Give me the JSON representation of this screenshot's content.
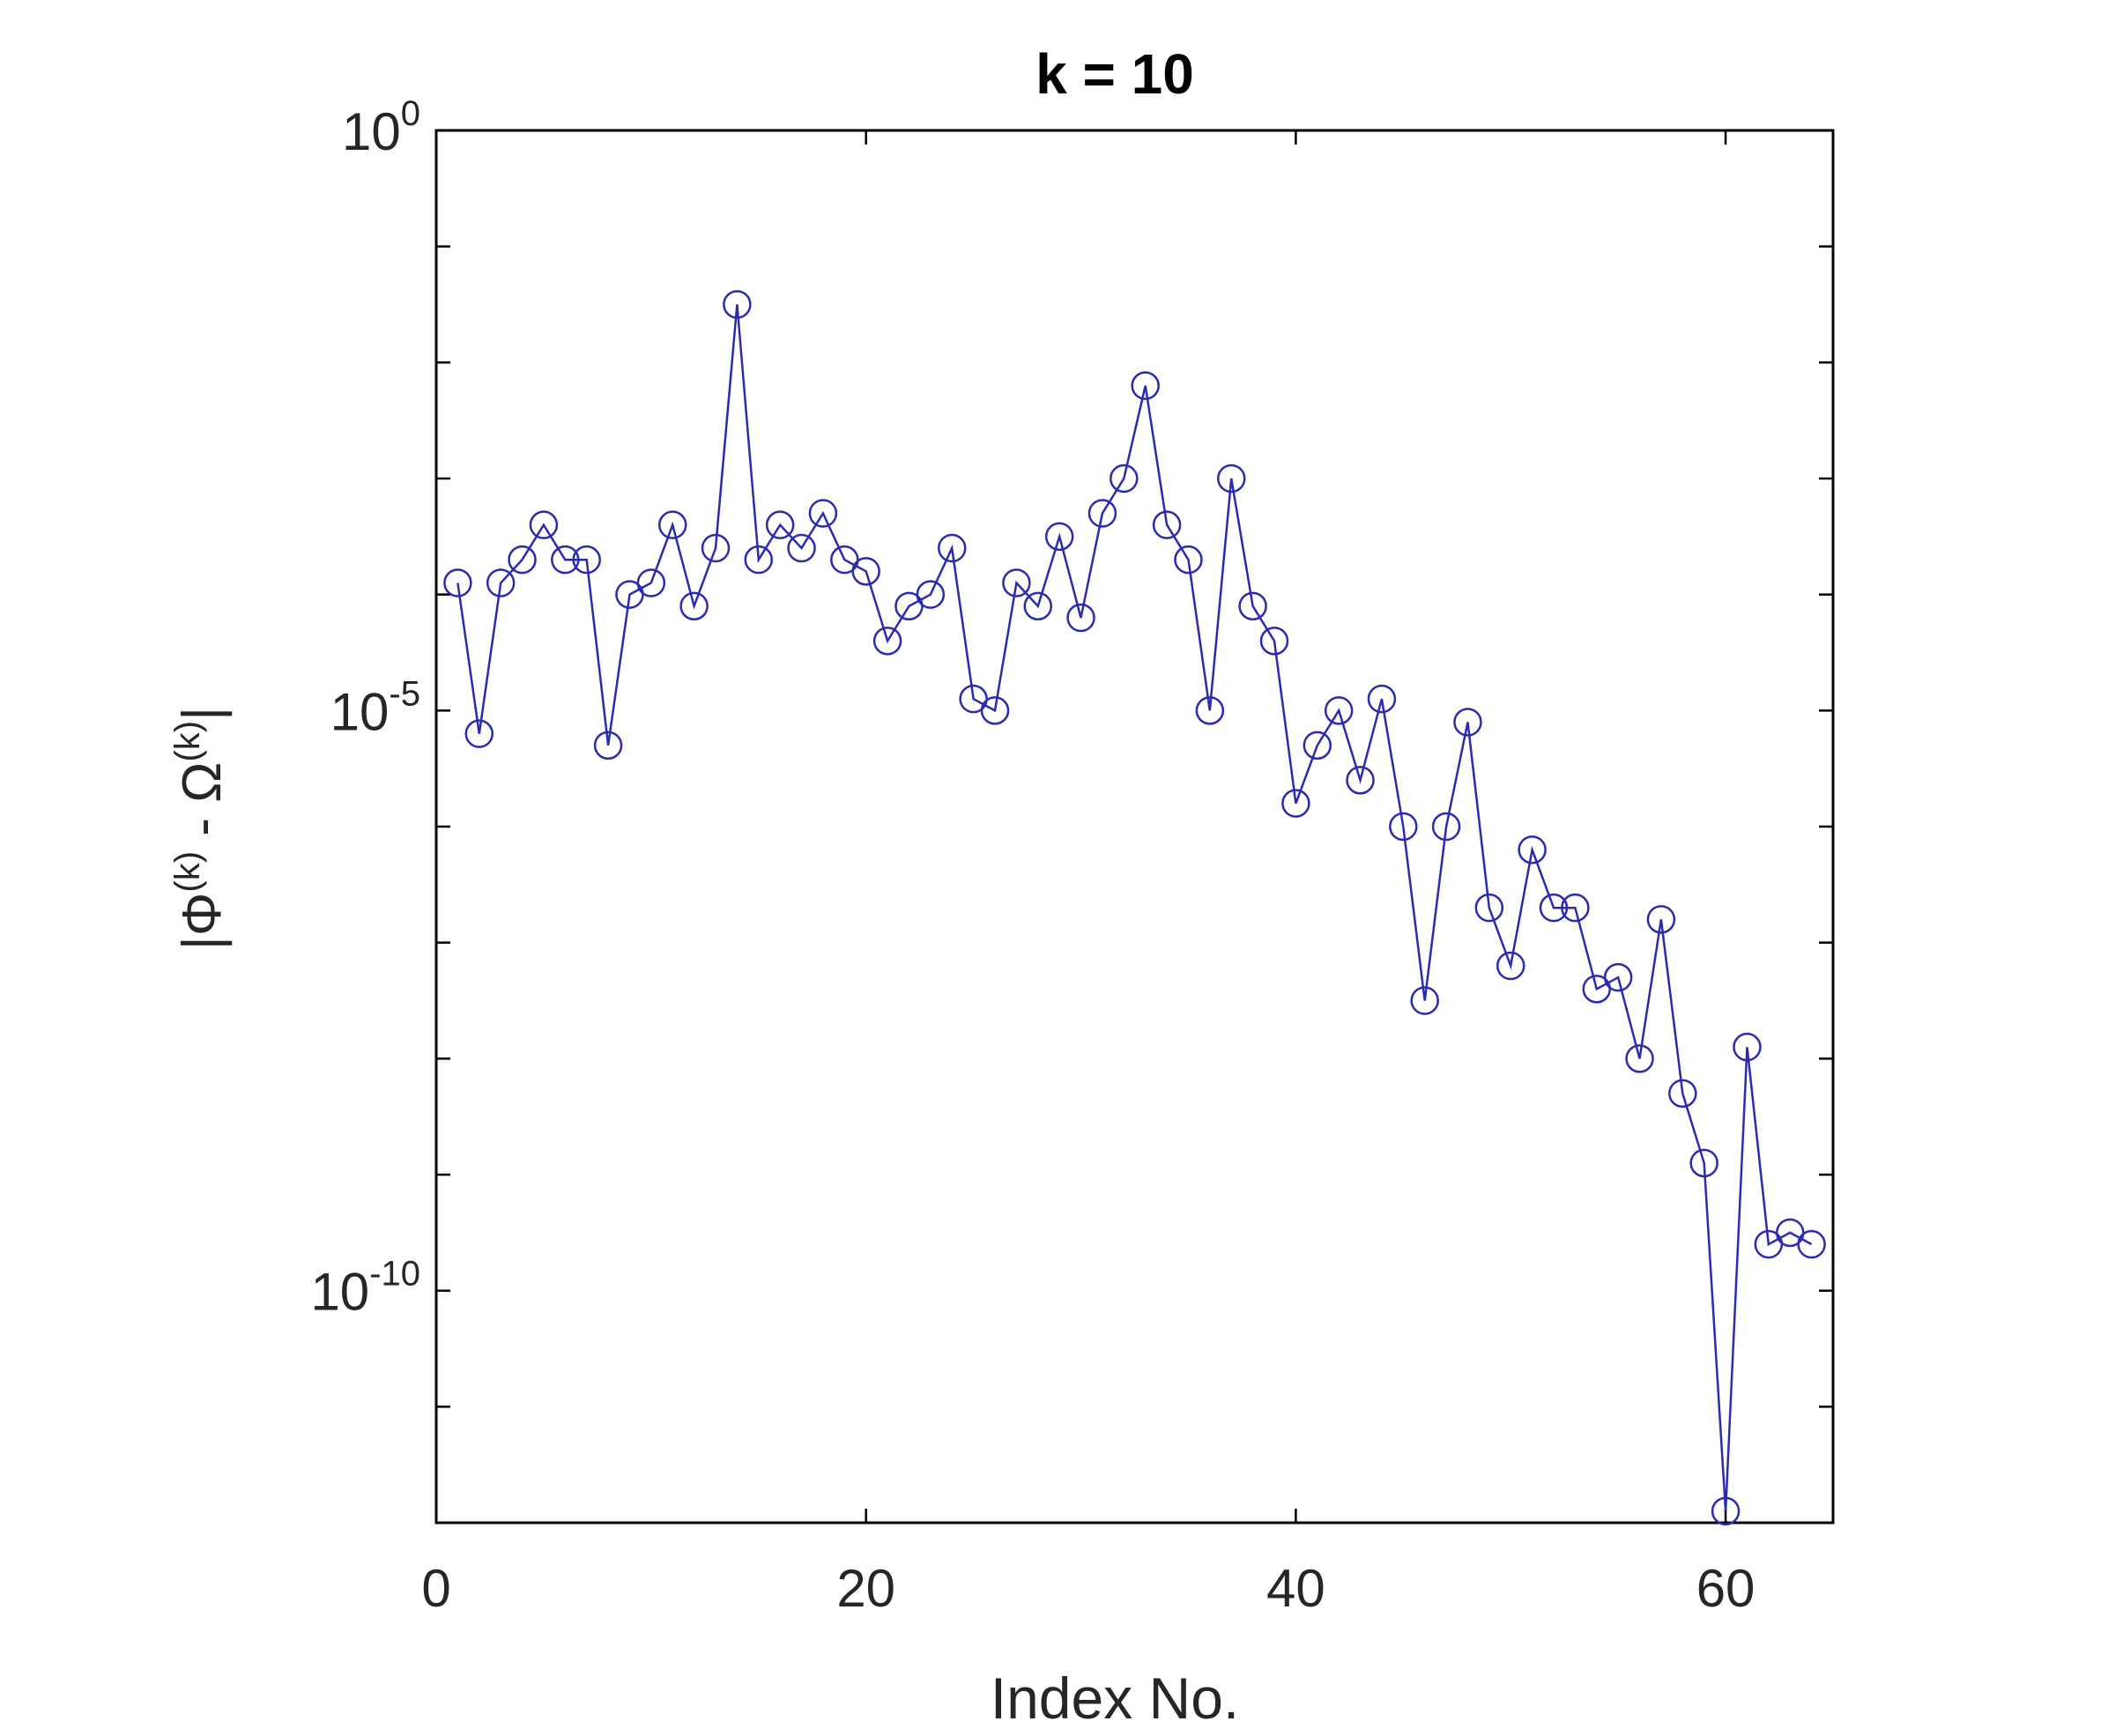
{
  "chart_data": {
    "type": "line",
    "title": "k = 10",
    "xlabel": "Index No.",
    "ylabel": {
      "prefix": "|Φ",
      "sup1": "(k)",
      "middle": " - Ω",
      "sup2": "(k)",
      "suffix": "|"
    },
    "xlim": [
      0,
      65
    ],
    "ylim_log10": [
      -12,
      0
    ],
    "yscale": "log",
    "grid": false,
    "marker": "circle",
    "color": "#2b2bb0",
    "xticks": [
      0,
      20,
      40,
      60
    ],
    "xtick_labels": [
      "0",
      "20",
      "40",
      "60"
    ],
    "yticks_log10": [
      0,
      -5,
      -10
    ],
    "ytick_labels": [
      {
        "base": "10",
        "exp": "0"
      },
      {
        "base": "10",
        "exp": "-5"
      },
      {
        "base": "10",
        "exp": "-10"
      }
    ],
    "series": [
      {
        "x": [
          1,
          2,
          3,
          4,
          5,
          6,
          7,
          8,
          9,
          10,
          11,
          12,
          13,
          14,
          15,
          16,
          17,
          18,
          19,
          20,
          21,
          22,
          23,
          24,
          25,
          26,
          27,
          28,
          29,
          30,
          31,
          32,
          33,
          34,
          35,
          36,
          37,
          38,
          39,
          40,
          41,
          42,
          43,
          44,
          45,
          46,
          47,
          48,
          49,
          50,
          51,
          52,
          53,
          54,
          55,
          56,
          57,
          58,
          59,
          60,
          61,
          62,
          63,
          64
        ],
        "log10_y": [
          -3.9,
          -5.2,
          -3.9,
          -3.7,
          -3.4,
          -3.7,
          -3.7,
          -5.3,
          -4.0,
          -3.9,
          -3.4,
          -4.1,
          -3.6,
          -1.5,
          -3.7,
          -3.4,
          -3.6,
          -3.3,
          -3.7,
          -3.8,
          -4.4,
          -4.1,
          -4.0,
          -3.6,
          -4.9,
          -5.0,
          -3.9,
          -4.1,
          -3.5,
          -4.2,
          -3.3,
          -3.0,
          -2.2,
          -3.4,
          -3.7,
          -5.0,
          -3.0,
          -4.1,
          -4.4,
          -5.8,
          -5.3,
          -5.0,
          -5.6,
          -4.9,
          -6.0,
          -7.5,
          -6.0,
          -5.1,
          -6.7,
          -7.2,
          -6.2,
          -6.7,
          -6.7,
          -7.4,
          -7.3,
          -8.0,
          -6.8,
          -8.3,
          -8.9,
          -11.9,
          -7.9,
          -9.6,
          -9.5,
          -9.6
        ]
      }
    ]
  }
}
